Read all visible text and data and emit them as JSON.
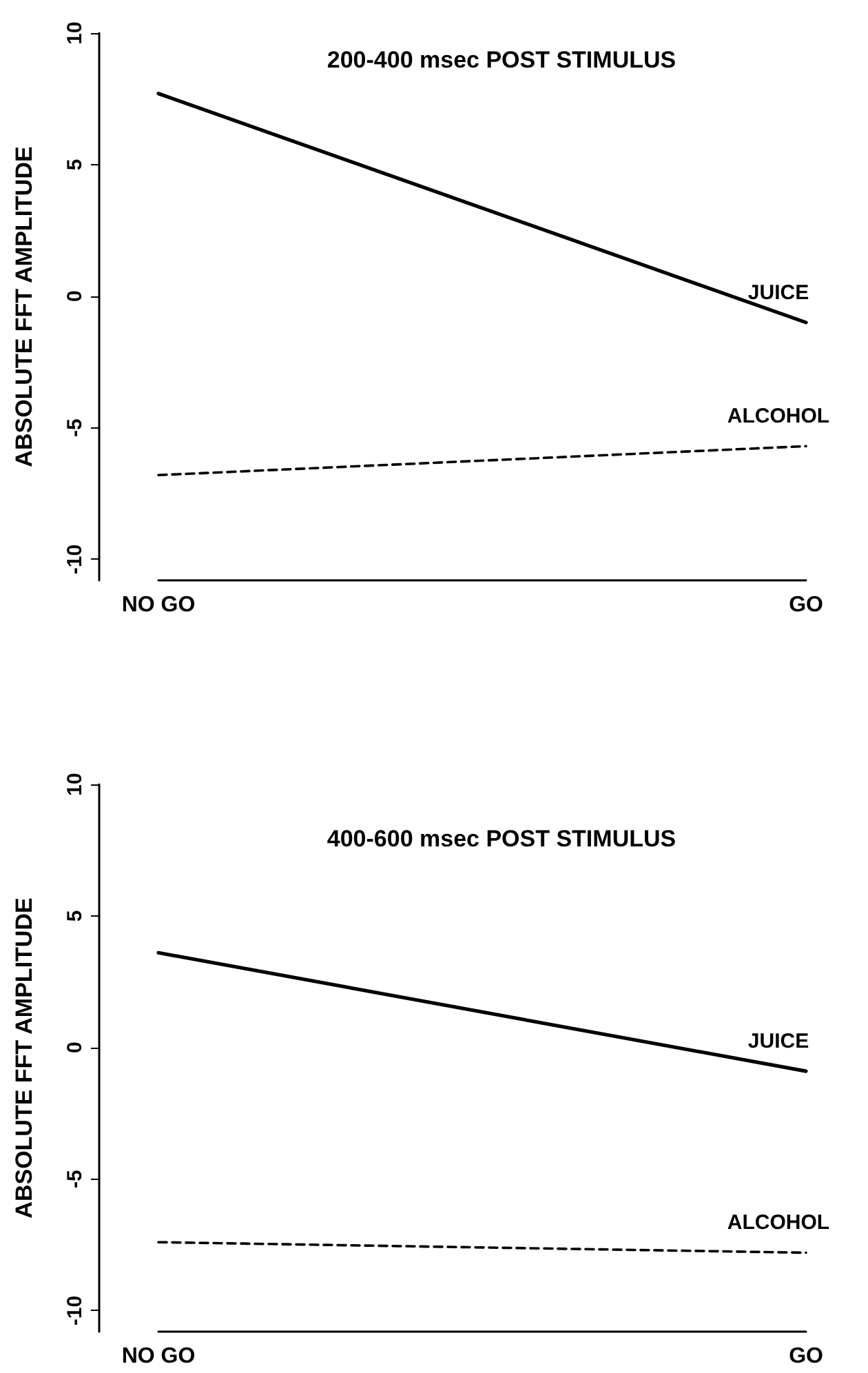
{
  "chart_data": [
    {
      "type": "line",
      "title": "200-400 msec POST STIMULUS",
      "ylabel": "ABSOLUTE FFT AMPLITUDE",
      "categories": [
        "NO GO",
        "GO"
      ],
      "series": [
        {
          "name": "JUICE",
          "color": "#000000",
          "values": [
            7.7,
            -1.0
          ],
          "line_style": "solid"
        },
        {
          "name": "ALCOHOL",
          "color": "#000000",
          "values": [
            -6.8,
            -5.7
          ],
          "line_style": "dashed"
        }
      ],
      "ylim": [
        -10.8,
        10
      ],
      "yticks": [
        -10,
        -5,
        0,
        5,
        10
      ],
      "grid": false,
      "legend": false,
      "marker": "none"
    },
    {
      "type": "line",
      "title": "400-600 msec POST STIMULUS",
      "ylabel": "ABSOLUTE FFT AMPLITUDE",
      "categories": [
        "NO GO",
        "GO"
      ],
      "series": [
        {
          "name": "JUICE",
          "color": "#000000",
          "values": [
            3.6,
            -0.9
          ],
          "line_style": "solid"
        },
        {
          "name": "ALCOHOL",
          "color": "#000000",
          "values": [
            -7.4,
            -7.8
          ],
          "line_style": "dashed"
        }
      ],
      "ylim": [
        -10.8,
        10
      ],
      "yticks": [
        -10,
        -5,
        0,
        5,
        10
      ],
      "grid": false,
      "legend": false,
      "marker": "none"
    }
  ]
}
